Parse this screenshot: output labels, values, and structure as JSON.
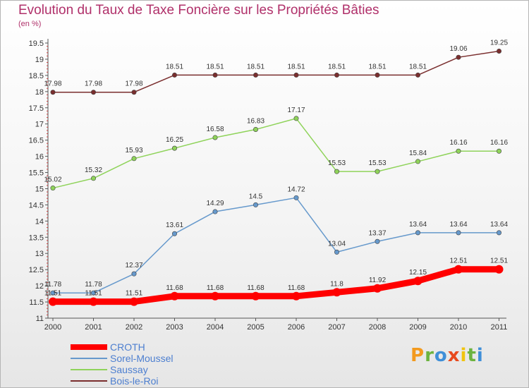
{
  "header": {
    "title": "Evolution du Taux de Taxe Foncière sur les Propriétés Bâties",
    "subtitle": "(en %)"
  },
  "logo": {
    "letters": [
      "P",
      "r",
      "o",
      "x",
      "i",
      "t",
      "i"
    ],
    "colors": [
      "#f39a1e",
      "#6cb33f",
      "#3f8fd8",
      "#e84a1e",
      "#f1c40f",
      "#6cb33f",
      "#3f8fd8"
    ]
  },
  "chart_data": {
    "type": "line",
    "title": "Evolution du Taux de Taxe Foncière sur les Propriétés Bâties",
    "ylabel": "(en %)",
    "x": [
      "2000",
      "2001",
      "2002",
      "2003",
      "2004",
      "2005",
      "2006",
      "2007",
      "2008",
      "2009",
      "2010",
      "2011"
    ],
    "ylim": [
      11,
      19.5
    ],
    "yticks": [
      "11",
      "11.5",
      "12",
      "12.5",
      "13",
      "13.5",
      "14",
      "14.5",
      "15",
      "15.5",
      "16",
      "16.5",
      "17",
      "17.5",
      "18",
      "18.5",
      "19",
      "19.5"
    ],
    "grid": false,
    "legend_position": "bottom-left",
    "series": [
      {
        "name": "CROTH",
        "color": "#ff0000",
        "values": [
          11.51,
          11.51,
          11.51,
          11.68,
          11.68,
          11.68,
          11.68,
          11.8,
          11.92,
          12.15,
          12.51,
          12.51
        ],
        "labels": [
          "11.51",
          "11.51",
          "11.51",
          "11.68",
          "11.68",
          "11.68",
          "11.68",
          "11.8",
          "11.92",
          "12.15",
          "12.51",
          "12.51"
        ]
      },
      {
        "name": "Sorel-Moussel",
        "color": "#6699cc",
        "values": [
          11.78,
          11.78,
          12.37,
          13.61,
          14.29,
          14.5,
          14.72,
          13.04,
          13.37,
          13.64,
          13.64,
          13.64
        ],
        "labels": [
          "11.78",
          "11.78",
          "12.37",
          "13.61",
          "14.29",
          "14.5",
          "14.72",
          "13.04",
          "13.37",
          "13.64",
          "13.64",
          "13.64"
        ]
      },
      {
        "name": "Saussay",
        "color": "#8fd35a",
        "values": [
          15.02,
          15.32,
          15.93,
          16.25,
          16.58,
          16.83,
          17.17,
          15.53,
          15.53,
          15.84,
          16.16,
          16.16
        ],
        "labels": [
          "15.02",
          "15.32",
          "15.93",
          "16.25",
          "16.58",
          "16.83",
          "17.17",
          "15.53",
          "15.53",
          "15.84",
          "16.16",
          "16.16"
        ]
      },
      {
        "name": "Bois-le-Roi",
        "color": "#7a2e2e",
        "values": [
          17.98,
          17.98,
          17.98,
          18.51,
          18.51,
          18.51,
          18.51,
          18.51,
          18.51,
          18.51,
          19.06,
          19.25
        ],
        "labels": [
          "17.98",
          "17.98",
          "17.98",
          "18.51",
          "18.51",
          "18.51",
          "18.51",
          "18.51",
          "18.51",
          "18.51",
          "19.06",
          "19.25"
        ]
      }
    ]
  }
}
